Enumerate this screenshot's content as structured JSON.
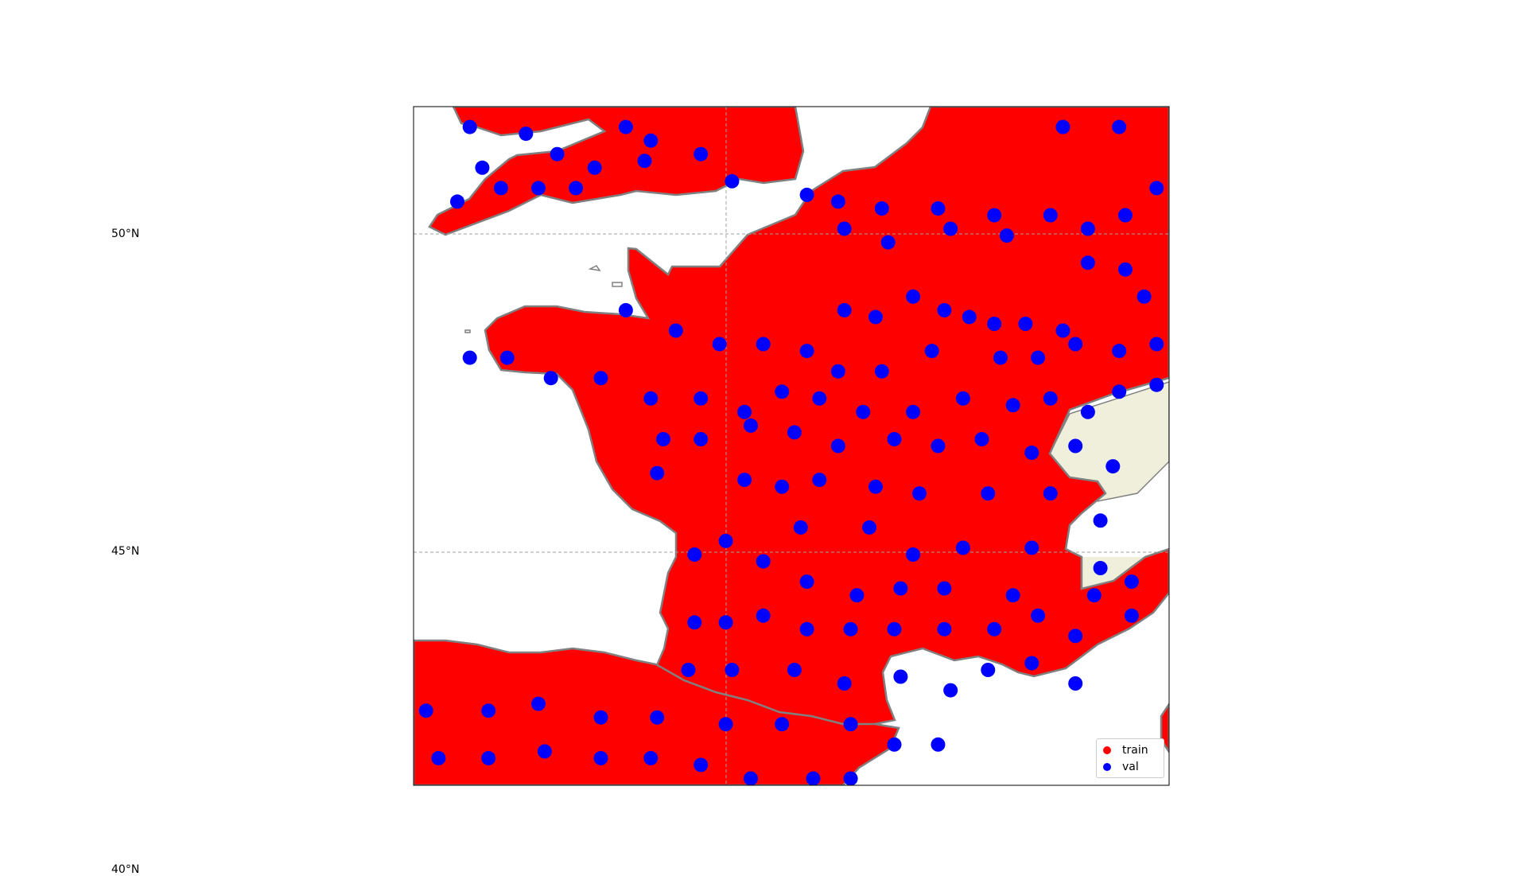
{
  "chart_data": {
    "type": "scatter",
    "title": "",
    "projection": "PlateCarree",
    "extent": {
      "lon": [
        -5.0,
        7.1
      ],
      "lat": [
        42.1,
        52.1
      ]
    },
    "gridlines": {
      "lat": [
        40,
        45,
        50
      ],
      "lon": [
        0
      ],
      "style": "dashed",
      "color": "#a0a0a0"
    },
    "lat_tick_labels": [
      "50°N",
      "45°N",
      "40°N"
    ],
    "features": {
      "land_color": "#efefdb",
      "ocean_color": "#ffffff",
      "border_color": "#808080",
      "frame_color": "#000000"
    },
    "legend": {
      "position": "lower-right",
      "entries": [
        "train",
        "val"
      ]
    },
    "series": [
      {
        "name": "train",
        "color": "#ff0000",
        "description_density": "dense cover over land"
      },
      {
        "name": "val",
        "color": "#0000ff",
        "points": [
          [
            -4.1,
            51.8
          ],
          [
            -3.2,
            51.7
          ],
          [
            -1.6,
            51.8
          ],
          [
            -1.2,
            51.6
          ],
          [
            -3.9,
            51.2
          ],
          [
            -2.7,
            51.4
          ],
          [
            -2.1,
            51.2
          ],
          [
            -1.3,
            51.3
          ],
          [
            -0.4,
            51.4
          ],
          [
            -4.3,
            50.7
          ],
          [
            -3.6,
            50.9
          ],
          [
            -3.0,
            50.9
          ],
          [
            -2.4,
            50.9
          ],
          [
            0.1,
            51.0
          ],
          [
            1.3,
            50.8
          ],
          [
            1.8,
            50.7
          ],
          [
            2.5,
            50.6
          ],
          [
            3.4,
            50.6
          ],
          [
            4.3,
            50.5
          ],
          [
            5.2,
            50.5
          ],
          [
            5.8,
            50.3
          ],
          [
            6.4,
            50.5
          ],
          [
            6.9,
            50.9
          ],
          [
            5.4,
            51.8
          ],
          [
            6.3,
            51.8
          ],
          [
            1.9,
            50.3
          ],
          [
            2.6,
            50.1
          ],
          [
            3.6,
            50.3
          ],
          [
            4.5,
            50.2
          ],
          [
            5.8,
            49.8
          ],
          [
            6.4,
            49.7
          ],
          [
            6.7,
            49.3
          ],
          [
            1.9,
            49.1
          ],
          [
            2.4,
            49.0
          ],
          [
            3.0,
            49.3
          ],
          [
            3.5,
            49.1
          ],
          [
            3.9,
            49.0
          ],
          [
            4.3,
            48.9
          ],
          [
            4.8,
            48.9
          ],
          [
            5.4,
            48.8
          ],
          [
            -1.6,
            49.1
          ],
          [
            -0.8,
            48.8
          ],
          [
            -0.1,
            48.6
          ],
          [
            0.6,
            48.6
          ],
          [
            1.3,
            48.5
          ],
          [
            1.8,
            48.2
          ],
          [
            2.5,
            48.2
          ],
          [
            3.3,
            48.5
          ],
          [
            4.4,
            48.4
          ],
          [
            5.0,
            48.4
          ],
          [
            5.6,
            48.6
          ],
          [
            6.3,
            48.5
          ],
          [
            6.9,
            48.6
          ],
          [
            -4.1,
            48.4
          ],
          [
            -3.5,
            48.4
          ],
          [
            -2.8,
            48.1
          ],
          [
            -2.0,
            48.1
          ],
          [
            -1.2,
            47.8
          ],
          [
            -0.4,
            47.8
          ],
          [
            0.3,
            47.6
          ],
          [
            0.9,
            47.9
          ],
          [
            1.5,
            47.8
          ],
          [
            2.2,
            47.6
          ],
          [
            3.0,
            47.6
          ],
          [
            3.8,
            47.8
          ],
          [
            4.6,
            47.7
          ],
          [
            5.2,
            47.8
          ],
          [
            5.8,
            47.6
          ],
          [
            6.3,
            47.9
          ],
          [
            6.9,
            48.0
          ],
          [
            -1.0,
            47.2
          ],
          [
            -0.4,
            47.2
          ],
          [
            0.4,
            47.4
          ],
          [
            1.1,
            47.3
          ],
          [
            1.8,
            47.1
          ],
          [
            2.7,
            47.2
          ],
          [
            3.4,
            47.1
          ],
          [
            4.1,
            47.2
          ],
          [
            4.9,
            47.0
          ],
          [
            5.6,
            47.1
          ],
          [
            6.2,
            46.8
          ],
          [
            -1.1,
            46.7
          ],
          [
            0.3,
            46.6
          ],
          [
            0.9,
            46.5
          ],
          [
            1.5,
            46.6
          ],
          [
            2.4,
            46.5
          ],
          [
            3.1,
            46.4
          ],
          [
            4.2,
            46.4
          ],
          [
            5.2,
            46.4
          ],
          [
            6.0,
            46.0
          ],
          [
            0.0,
            45.7
          ],
          [
            1.2,
            45.9
          ],
          [
            2.3,
            45.9
          ],
          [
            3.0,
            45.5
          ],
          [
            3.8,
            45.6
          ],
          [
            4.9,
            45.6
          ],
          [
            6.0,
            45.3
          ],
          [
            6.5,
            45.1
          ],
          [
            -0.5,
            45.5
          ],
          [
            0.6,
            45.4
          ],
          [
            1.3,
            45.1
          ],
          [
            2.1,
            44.9
          ],
          [
            2.8,
            45.0
          ],
          [
            3.5,
            45.0
          ],
          [
            4.6,
            44.9
          ],
          [
            5.9,
            44.9
          ],
          [
            6.5,
            44.6
          ],
          [
            -0.5,
            44.5
          ],
          [
            0.0,
            44.5
          ],
          [
            0.6,
            44.6
          ],
          [
            1.3,
            44.4
          ],
          [
            2.0,
            44.4
          ],
          [
            2.7,
            44.4
          ],
          [
            3.5,
            44.4
          ],
          [
            4.3,
            44.4
          ],
          [
            5.0,
            44.6
          ],
          [
            5.6,
            44.3
          ],
          [
            -0.6,
            43.8
          ],
          [
            0.1,
            43.8
          ],
          [
            1.1,
            43.8
          ],
          [
            1.9,
            43.6
          ],
          [
            2.8,
            43.7
          ],
          [
            3.6,
            43.5
          ],
          [
            4.2,
            43.8
          ],
          [
            4.9,
            43.9
          ],
          [
            5.6,
            43.6
          ],
          [
            -4.8,
            43.2
          ],
          [
            -3.8,
            43.2
          ],
          [
            -3.0,
            43.3
          ],
          [
            -2.0,
            43.1
          ],
          [
            -1.1,
            43.1
          ],
          [
            0.0,
            43.0
          ],
          [
            0.9,
            43.0
          ],
          [
            2.0,
            43.0
          ],
          [
            2.7,
            42.7
          ],
          [
            3.4,
            42.7
          ],
          [
            -4.6,
            42.5
          ],
          [
            -3.8,
            42.5
          ],
          [
            -2.9,
            42.6
          ],
          [
            -2.0,
            42.5
          ],
          [
            -1.2,
            42.5
          ],
          [
            -0.4,
            42.4
          ],
          [
            0.4,
            42.2
          ],
          [
            1.4,
            42.2
          ],
          [
            2.0,
            42.2
          ],
          [
            -4.7,
            41.9
          ],
          [
            -3.7,
            41.8
          ],
          [
            -2.9,
            42.0
          ],
          [
            -2.0,
            41.9
          ],
          [
            -1.2,
            41.8
          ],
          [
            -0.4,
            41.7
          ]
        ]
      }
    ]
  }
}
